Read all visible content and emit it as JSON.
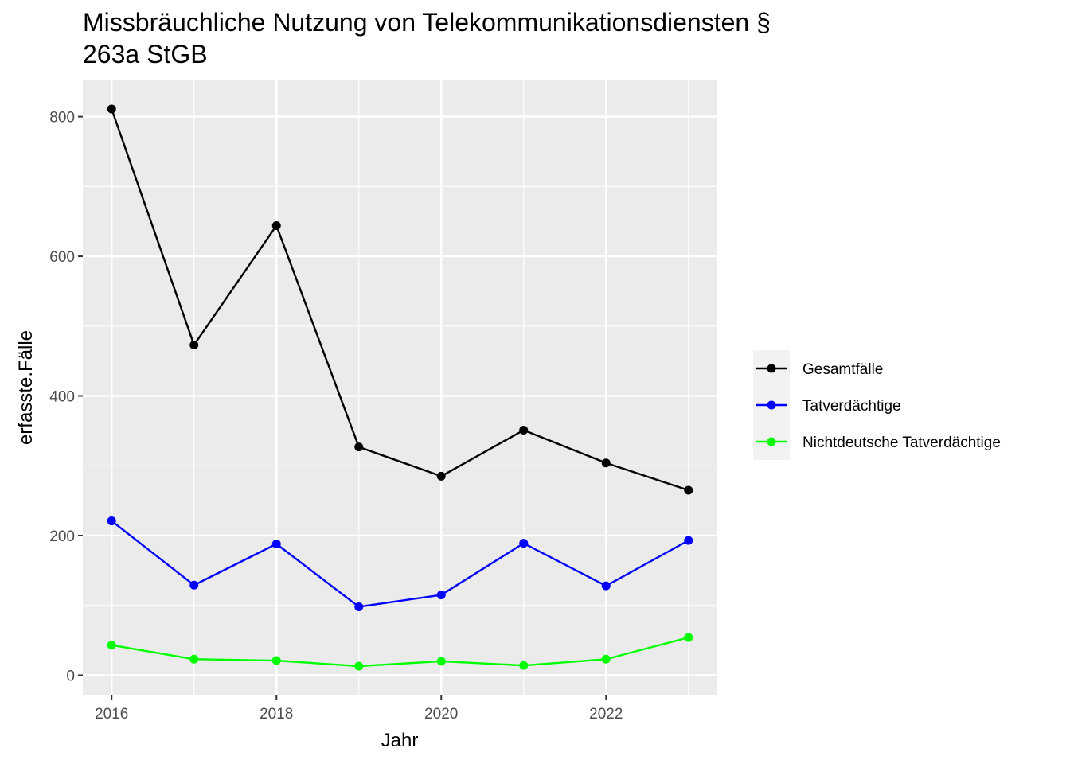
{
  "chart_data": {
    "type": "line",
    "title": "Missbräuchliche Nutzung von Telekommunikationsdiensten §",
    "subtitle": "263a StGB",
    "xlabel": "Jahr",
    "ylabel": "erfasste.Fälle",
    "x": [
      2016,
      2017,
      2018,
      2019,
      2020,
      2021,
      2022,
      2023
    ],
    "x_ticks": [
      "2016",
      "2018",
      "2020",
      "2022"
    ],
    "y_ticks": [
      "0",
      "200",
      "400",
      "600",
      "800"
    ],
    "xlim": [
      2015.65,
      2023.35
    ],
    "ylim": [
      -28,
      852
    ],
    "grid": true,
    "legend_position": "right",
    "series": [
      {
        "name": "Gesamtfälle",
        "color": "#000000",
        "values": [
          811,
          473,
          644,
          327,
          285,
          351,
          304,
          265
        ]
      },
      {
        "name": "Tatverdächtige",
        "color": "#0000FF",
        "values": [
          221,
          129,
          188,
          98,
          115,
          189,
          128,
          193
        ]
      },
      {
        "name": "Nichtdeutsche Tatverdächtige",
        "color": "#00FF00",
        "values": [
          43,
          23,
          21,
          13,
          20,
          14,
          23,
          54
        ]
      }
    ]
  }
}
